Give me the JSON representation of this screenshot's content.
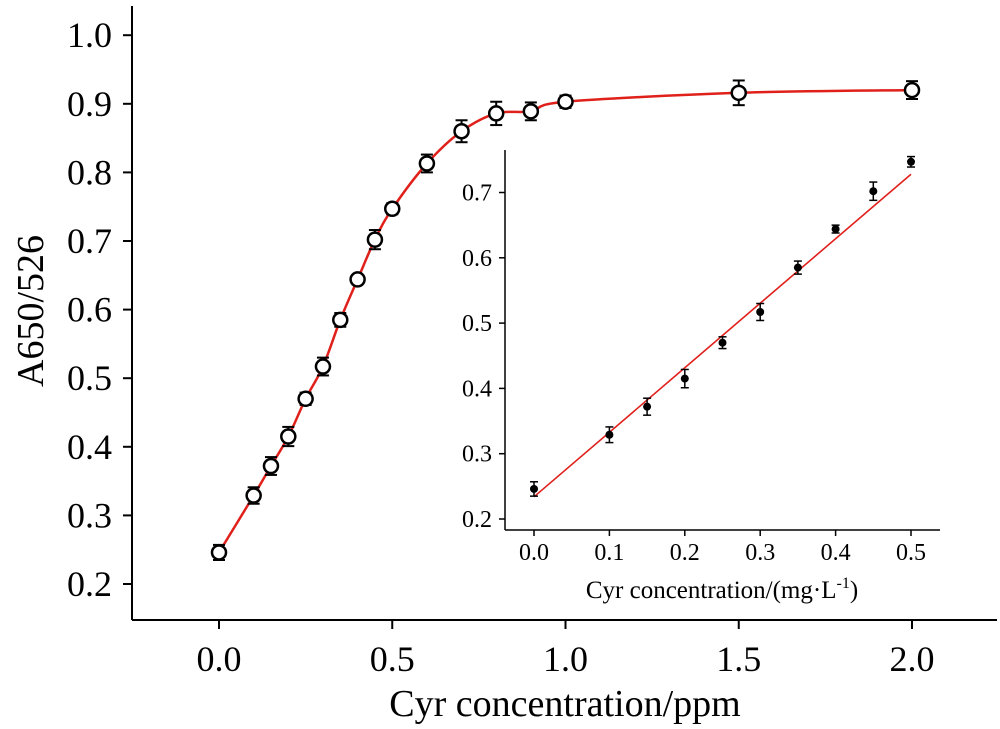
{
  "chart_data": [
    {
      "type": "scatter",
      "panel": "main",
      "xlabel": "Cyr concentration/ppm",
      "ylabel": "A650/526",
      "xlim": [
        -0.25,
        2.25
      ],
      "ylim": [
        0.16,
        1.05
      ],
      "xticks": [
        "0.0",
        "0.5",
        "1.0",
        "1.5",
        "2.0"
      ],
      "yticks": [
        "0.2",
        "0.3",
        "0.4",
        "0.5",
        "0.6",
        "0.7",
        "0.8",
        "0.9",
        "1.0"
      ],
      "x": [
        0.0,
        0.1,
        0.15,
        0.2,
        0.25,
        0.3,
        0.35,
        0.4,
        0.45,
        0.5,
        0.6,
        0.7,
        0.8,
        0.9,
        1.0,
        1.5,
        2.0
      ],
      "y": [
        0.246,
        0.329,
        0.372,
        0.415,
        0.47,
        0.517,
        0.585,
        0.644,
        0.702,
        0.747,
        0.813,
        0.86,
        0.886,
        0.889,
        0.903,
        0.916,
        0.92
      ],
      "yerr": [
        0.011,
        0.012,
        0.013,
        0.014,
        0.009,
        0.013,
        0.01,
        0.006,
        0.014,
        0.008,
        0.013,
        0.016,
        0.017,
        0.013,
        0.009,
        0.018,
        0.013
      ],
      "fit_line": "smooth curve through points",
      "fit_color": "#e0201b",
      "marker": "open circle"
    },
    {
      "type": "scatter",
      "panel": "inset",
      "xlabel": "Cyr concentration/(mg·L",
      "xlabel_sup": "-1",
      "xlabel_end": ")",
      "ylabel": "",
      "xlim": [
        -0.03,
        0.54
      ],
      "ylim": [
        0.18,
        0.75
      ],
      "xticks": [
        "0.0",
        "0.1",
        "0.2",
        "0.3",
        "0.4",
        "0.5"
      ],
      "yticks": [
        "0.2",
        "0.3",
        "0.4",
        "0.5",
        "0.6",
        "0.7"
      ],
      "x": [
        0.0,
        0.1,
        0.15,
        0.2,
        0.25,
        0.3,
        0.35,
        0.4,
        0.45,
        0.5
      ],
      "y": [
        0.246,
        0.329,
        0.372,
        0.415,
        0.47,
        0.517,
        0.585,
        0.644,
        0.702,
        0.747
      ],
      "yerr": [
        0.011,
        0.012,
        0.013,
        0.014,
        0.009,
        0.013,
        0.01,
        0.006,
        0.014,
        0.008
      ],
      "fit_line": {
        "x": [
          0.0,
          0.5
        ],
        "y": [
          0.234,
          0.728
        ]
      },
      "fit_color": "#e0201b",
      "marker": "filled circle"
    }
  ]
}
